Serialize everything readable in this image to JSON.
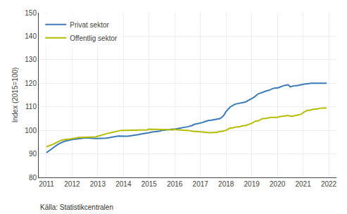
{
  "chart_data": {
    "type": "line",
    "ylabel": "Index (2015=100)",
    "annotations": [
      "Källa: Statistikcentralen"
    ],
    "ylim": [
      80,
      150
    ],
    "yticks": [
      80,
      90,
      100,
      110,
      120,
      130,
      140,
      150
    ],
    "xlim": [
      2010.7,
      2022.3
    ],
    "xticks": [
      2011,
      2012,
      2013,
      2014,
      2015,
      2016,
      2017,
      2018,
      2019,
      2020,
      2021,
      2022
    ],
    "grid": true,
    "legend": "upper left",
    "x": [
      2011.0,
      2011.08,
      2011.17,
      2011.25,
      2011.33,
      2011.42,
      2011.5,
      2011.58,
      2011.67,
      2011.75,
      2011.83,
      2011.92,
      2012.0,
      2012.08,
      2012.17,
      2012.25,
      2012.33,
      2012.42,
      2012.5,
      2012.58,
      2012.67,
      2012.75,
      2012.83,
      2012.92,
      2013.0,
      2013.08,
      2013.17,
      2013.25,
      2013.33,
      2013.42,
      2013.5,
      2013.58,
      2013.67,
      2013.75,
      2013.83,
      2013.92,
      2014.0,
      2014.08,
      2014.17,
      2014.25,
      2014.33,
      2014.42,
      2014.5,
      2014.58,
      2014.67,
      2014.75,
      2014.83,
      2014.92,
      2015.0,
      2015.08,
      2015.17,
      2015.25,
      2015.33,
      2015.42,
      2015.5,
      2015.58,
      2015.67,
      2015.75,
      2015.83,
      2015.92,
      2016.0,
      2016.08,
      2016.17,
      2016.25,
      2016.33,
      2016.42,
      2016.5,
      2016.58,
      2016.67,
      2016.75,
      2016.83,
      2016.92,
      2017.0,
      2017.08,
      2017.17,
      2017.25,
      2017.33,
      2017.42,
      2017.5,
      2017.58,
      2017.67,
      2017.75,
      2017.83,
      2017.92,
      2018.0,
      2018.08,
      2018.17,
      2018.25,
      2018.33,
      2018.42,
      2018.5,
      2018.58,
      2018.67,
      2018.75,
      2018.83,
      2018.92,
      2019.0,
      2019.08,
      2019.17,
      2019.25,
      2019.33,
      2019.42,
      2019.5,
      2019.58,
      2019.67,
      2019.75,
      2019.83,
      2019.92,
      2020.0,
      2020.08,
      2020.17,
      2020.25,
      2020.33,
      2020.42,
      2020.5,
      2020.58,
      2020.67,
      2020.75,
      2020.83,
      2020.92,
      2021.0,
      2021.08,
      2021.17,
      2021.25,
      2021.33,
      2021.42,
      2021.5,
      2021.58,
      2021.67,
      2021.75,
      2021.83,
      2021.92
    ],
    "series": [
      {
        "name": "Privat sektor",
        "color": "#3a7ab8",
        "values": [
          90.5,
          91.0,
          91.8,
          92.5,
          93.2,
          93.8,
          94.3,
          94.8,
          95.2,
          95.5,
          95.7,
          95.9,
          96.0,
          96.2,
          96.3,
          96.5,
          96.6,
          96.7,
          96.8,
          96.7,
          96.6,
          96.5,
          96.5,
          96.5,
          96.5,
          96.5,
          96.5,
          96.6,
          96.7,
          96.8,
          97.0,
          97.1,
          97.3,
          97.5,
          97.6,
          97.5,
          97.5,
          97.5,
          97.5,
          97.6,
          97.7,
          97.8,
          98.0,
          98.2,
          98.4,
          98.5,
          98.7,
          98.8,
          99.0,
          99.2,
          99.3,
          99.5,
          99.6,
          99.7,
          100.0,
          100.1,
          100.2,
          100.5,
          100.5,
          100.5,
          100.5,
          100.6,
          100.8,
          101.0,
          101.2,
          101.3,
          101.5,
          101.8,
          102.0,
          102.5,
          102.7,
          102.8,
          103.0,
          103.3,
          103.7,
          104.0,
          104.2,
          104.3,
          104.5,
          104.7,
          104.8,
          105.0,
          105.5,
          106.5,
          108.0,
          109.0,
          110.0,
          110.5,
          111.0,
          111.3,
          111.5,
          111.7,
          111.8,
          112.0,
          112.5,
          113.0,
          113.5,
          114.0,
          114.8,
          115.5,
          115.8,
          116.2,
          116.5,
          116.8,
          117.0,
          117.5,
          117.8,
          118.0,
          118.0,
          118.3,
          118.8,
          119.0,
          119.2,
          119.3,
          118.5,
          118.8,
          119.0,
          119.0,
          119.2,
          119.3,
          119.5,
          119.7,
          119.8,
          120.0,
          120.0,
          120.0,
          120.0,
          120.0,
          120.0,
          120.0,
          120.0,
          120.0
        ]
      },
      {
        "name": "Offentlig sektor",
        "color": "#b5bd00",
        "values": [
          93.0,
          93.3,
          93.8,
          94.0,
          94.5,
          95.0,
          95.5,
          95.8,
          96.0,
          96.0,
          96.2,
          96.3,
          96.5,
          96.8,
          97.0,
          97.0,
          97.0,
          97.0,
          97.0,
          97.0,
          97.0,
          97.0,
          97.0,
          97.2,
          97.5,
          97.8,
          98.0,
          98.2,
          98.5,
          98.8,
          99.0,
          99.2,
          99.5,
          99.5,
          99.8,
          100.0,
          100.0,
          100.0,
          100.0,
          100.0,
          100.0,
          100.0,
          100.0,
          100.0,
          100.0,
          100.0,
          100.0,
          100.2,
          100.5,
          100.5,
          100.5,
          100.5,
          100.5,
          100.5,
          100.5,
          100.5,
          100.5,
          100.5,
          100.3,
          100.2,
          100.5,
          100.3,
          100.2,
          100.0,
          100.0,
          100.0,
          100.0,
          99.8,
          99.7,
          99.5,
          99.5,
          99.5,
          99.5,
          99.3,
          99.2,
          99.0,
          99.0,
          99.0,
          99.0,
          99.0,
          99.2,
          99.5,
          99.5,
          99.8,
          100.0,
          100.5,
          101.0,
          101.0,
          101.3,
          101.5,
          101.5,
          101.8,
          102.0,
          102.0,
          102.3,
          102.5,
          103.0,
          103.5,
          104.0,
          104.0,
          104.5,
          105.0,
          105.0,
          105.2,
          105.3,
          105.5,
          105.5,
          105.5,
          105.5,
          105.8,
          106.0,
          106.0,
          106.2,
          106.3,
          106.0,
          106.0,
          106.2,
          106.5,
          106.5,
          106.8,
          107.5,
          108.0,
          108.5,
          108.5,
          108.8,
          109.0,
          109.0,
          109.2,
          109.3,
          109.5,
          109.5,
          109.5
        ]
      }
    ]
  }
}
